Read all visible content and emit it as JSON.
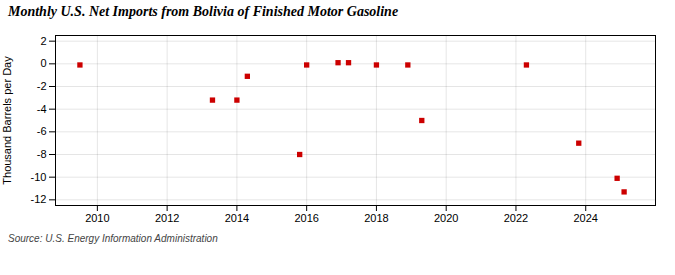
{
  "chart_data": {
    "type": "scatter",
    "title": "Monthly U.S. Net Imports from Bolivia of Finished Motor Gasoline",
    "ylabel": "Thousand Barrels per Day",
    "source": "Source: U.S. Energy Information Administration",
    "x": [
      2009.5,
      2013.3,
      2014.0,
      2014.3,
      2015.8,
      2016.0,
      2016.9,
      2017.2,
      2018.0,
      2018.9,
      2019.3,
      2022.3,
      2023.8,
      2024.9,
      2025.1
    ],
    "values": [
      -0.1,
      -3.2,
      -3.2,
      -1.1,
      -8.0,
      -0.1,
      0.1,
      0.1,
      -0.1,
      -0.1,
      -5.0,
      -0.1,
      -7.0,
      -10.1,
      -11.3
    ],
    "color": "#cc0000",
    "marker": "square",
    "xlim": [
      2008.8,
      2026.0
    ],
    "ylim": [
      -12.5,
      2.5
    ],
    "xticks": [
      2010,
      2012,
      2014,
      2016,
      2018,
      2020,
      2022,
      2024
    ],
    "yticks": [
      2,
      0,
      -2,
      -4,
      -6,
      -8,
      -10,
      -12
    ],
    "grid": true
  }
}
